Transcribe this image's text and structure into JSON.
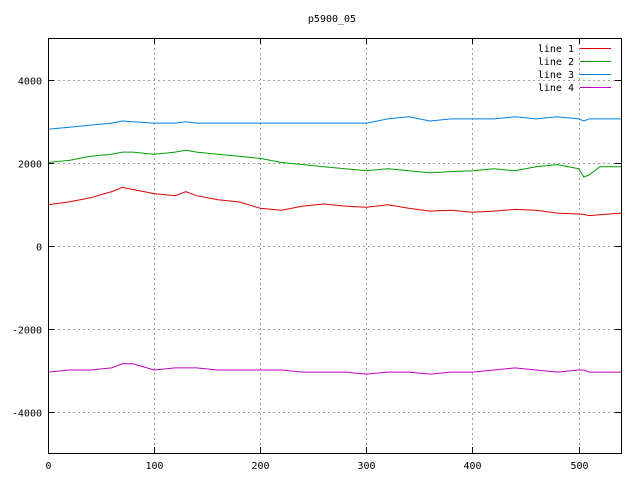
{
  "chart_data": {
    "type": "line",
    "title": "p5900_05",
    "xlabel": "",
    "ylabel": "",
    "xlim": [
      0,
      540
    ],
    "ylim": [
      -5000,
      5000
    ],
    "xticks": [
      0,
      100,
      200,
      300,
      400,
      500
    ],
    "yticks": [
      -4000,
      -2000,
      0,
      2000,
      4000
    ],
    "grid": true,
    "legend_position": "top-right",
    "x": [
      0,
      20,
      40,
      60,
      70,
      80,
      100,
      120,
      130,
      140,
      160,
      180,
      200,
      220,
      240,
      260,
      280,
      300,
      320,
      340,
      360,
      380,
      400,
      420,
      440,
      460,
      480,
      500,
      505,
      510,
      520,
      540
    ],
    "series": [
      {
        "name": "line 1",
        "color": "#e00000",
        "values": [
          980,
          1050,
          1150,
          1300,
          1400,
          1350,
          1250,
          1200,
          1300,
          1200,
          1100,
          1050,
          900,
          850,
          950,
          1000,
          950,
          920,
          980,
          900,
          830,
          850,
          800,
          830,
          870,
          850,
          780,
          760,
          750,
          720,
          740,
          780
        ]
      },
      {
        "name": "line 2",
        "color": "#00a000",
        "values": [
          2000,
          2050,
          2150,
          2200,
          2250,
          2250,
          2200,
          2250,
          2300,
          2250,
          2200,
          2150,
          2100,
          2000,
          1950,
          1900,
          1850,
          1800,
          1850,
          1800,
          1750,
          1780,
          1800,
          1850,
          1800,
          1900,
          1950,
          1850,
          1650,
          1700,
          1900,
          1900
        ]
      },
      {
        "name": "line 3",
        "color": "#0080e0",
        "values": [
          2800,
          2850,
          2900,
          2950,
          3000,
          2980,
          2950,
          2950,
          2980,
          2950,
          2950,
          2950,
          2950,
          2950,
          2950,
          2950,
          2950,
          2950,
          3050,
          3100,
          3000,
          3050,
          3050,
          3050,
          3100,
          3050,
          3100,
          3050,
          3000,
          3050,
          3050,
          3050
        ]
      },
      {
        "name": "line 4",
        "color": "#c000c0",
        "values": [
          -3050,
          -3000,
          -3000,
          -2950,
          -2850,
          -2850,
          -3000,
          -2950,
          -2950,
          -2950,
          -3000,
          -3000,
          -3000,
          -3000,
          -3050,
          -3050,
          -3050,
          -3100,
          -3050,
          -3050,
          -3100,
          -3050,
          -3050,
          -3000,
          -2950,
          -3000,
          -3050,
          -3000,
          -3000,
          -3050,
          -3050,
          -3050
        ]
      }
    ]
  }
}
